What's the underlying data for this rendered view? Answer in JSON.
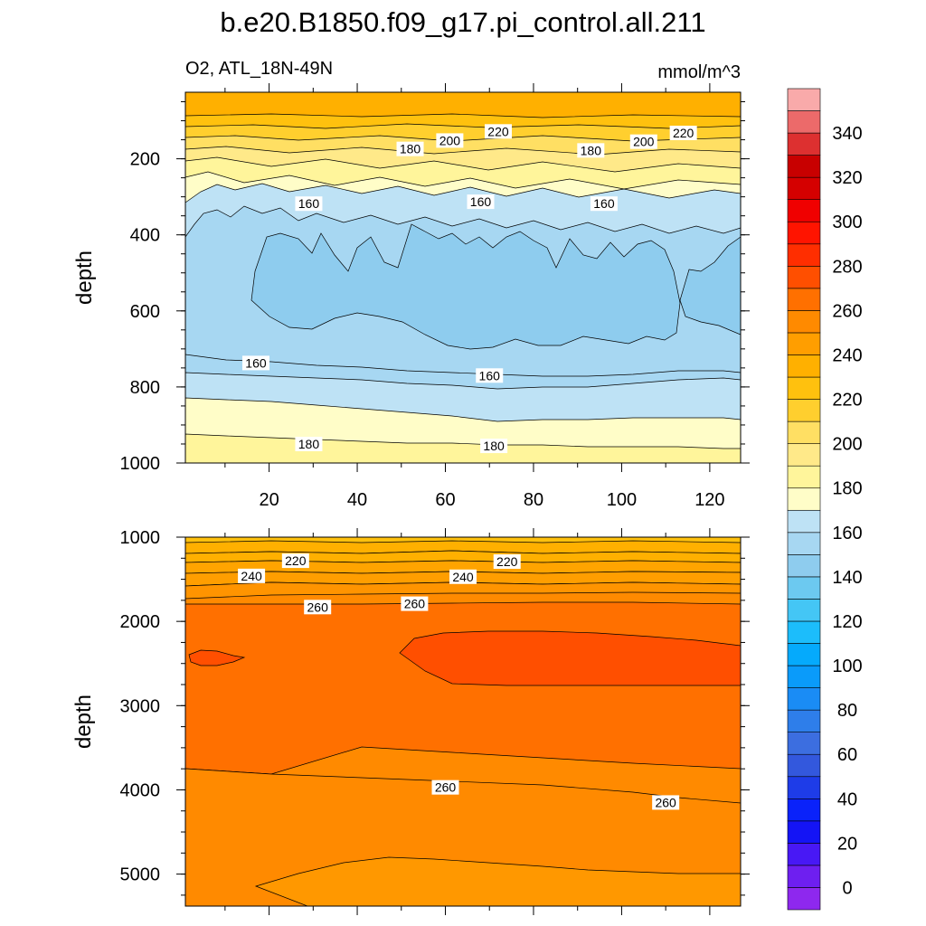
{
  "figure": {
    "title": "b.e20.B1850.f09_g17.pi_control.all.211",
    "left_subtitle": "O2, ATL_18N-49N",
    "right_subtitle": "mmol/m^3"
  },
  "colors": {
    "c_lt140": "#8ECCEE",
    "c_140_160": "#A7D7F2",
    "c_160_170": "#BEE2F5",
    "c_170_180": "#FFFDC8",
    "c_180_190": "#FFF59B",
    "c_190_200": "#FFE989",
    "c_200_210": "#FFDF63",
    "c_210_220": "#FFCF2E",
    "c_220_230": "#FFC10E",
    "c_230_240": "#FFB000",
    "c_240_250": "#FF9E00",
    "c_250_260": "#FF8A00",
    "c_260_270": "#FF7000",
    "c_270_280": "#FF4F00"
  },
  "chart_data": [
    {
      "type": "contour",
      "panel": "upper",
      "xlabel": "",
      "ylabel": "depth",
      "xlim": [
        1,
        127
      ],
      "ylim": [
        1000,
        25
      ],
      "xticks": [
        20,
        40,
        60,
        80,
        100,
        120
      ],
      "yticks": [
        200,
        400,
        600,
        800,
        1000
      ],
      "contour_labels": [
        {
          "text": "220",
          "x": 72,
          "y": 128
        },
        {
          "text": "220",
          "x": 114,
          "y": 132
        },
        {
          "text": "200",
          "x": 61,
          "y": 152
        },
        {
          "text": "200",
          "x": 105,
          "y": 155
        },
        {
          "text": "180",
          "x": 52,
          "y": 174
        },
        {
          "text": "180",
          "x": 93,
          "y": 178
        },
        {
          "text": "160",
          "x": 29,
          "y": 318
        },
        {
          "text": "160",
          "x": 68,
          "y": 313
        },
        {
          "text": "160",
          "x": 96,
          "y": 318
        },
        {
          "text": "160",
          "x": 17,
          "y": 737
        },
        {
          "text": "160",
          "x": 70,
          "y": 770
        },
        {
          "text": "180",
          "x": 29,
          "y": 950
        },
        {
          "text": "180",
          "x": 71,
          "y": 955
        }
      ]
    },
    {
      "type": "contour",
      "panel": "lower",
      "xlabel": "",
      "ylabel": "depth",
      "xlim": [
        1,
        127
      ],
      "ylim": [
        5380,
        1000
      ],
      "yticks": [
        1000,
        2000,
        3000,
        4000,
        5000
      ],
      "yticklabels": [
        "1000",
        "2000",
        "3000",
        "4000",
        "5000"
      ],
      "contour_labels": [
        {
          "text": "220",
          "x": 26,
          "y": 1280
        },
        {
          "text": "220",
          "x": 74,
          "y": 1290
        },
        {
          "text": "240",
          "x": 16,
          "y": 1460
        },
        {
          "text": "240",
          "x": 64,
          "y": 1470
        },
        {
          "text": "260",
          "x": 31,
          "y": 1830
        },
        {
          "text": "260",
          "x": 53,
          "y": 1790
        },
        {
          "text": "260",
          "x": 60,
          "y": 3970
        },
        {
          "text": "260",
          "x": 110,
          "y": 4150
        }
      ]
    },
    {
      "type": "colorbar",
      "levels": [
        0,
        10,
        20,
        30,
        40,
        50,
        60,
        70,
        80,
        90,
        100,
        110,
        120,
        130,
        140,
        150,
        160,
        170,
        180,
        190,
        200,
        210,
        220,
        230,
        240,
        250,
        260,
        270,
        280,
        290,
        300,
        310,
        320,
        330,
        340,
        350
      ],
      "tick_labels": [
        "0",
        "20",
        "40",
        "60",
        "80",
        "100",
        "120",
        "140",
        "160",
        "180",
        "200",
        "220",
        "240",
        "260",
        "280",
        "300",
        "320",
        "340"
      ],
      "colors": [
        "#8E28EE",
        "#6E1FF0",
        "#4818F5",
        "#1414F5",
        "#0A22FA",
        "#1E3CE8",
        "#3358DD",
        "#3C6EE0",
        "#2E7EEA",
        "#1A8CF5",
        "#0A9BFA",
        "#05AAFC",
        "#1CBDFB",
        "#44C6F5",
        "#6CC9F0",
        "#8ECCEE",
        "#A7D7F2",
        "#BEE2F5",
        "#FFFDC8",
        "#FFF59B",
        "#FFE989",
        "#FFDF63",
        "#FFCF2E",
        "#FFC10E",
        "#FFB000",
        "#FF9E00",
        "#FF8A00",
        "#FF7000",
        "#FF4F00",
        "#FF2E00",
        "#FF1400",
        "#F00000",
        "#D50000",
        "#C80000",
        "#DD3030",
        "#EC6A6A",
        "#F9AAAA"
      ]
    }
  ]
}
